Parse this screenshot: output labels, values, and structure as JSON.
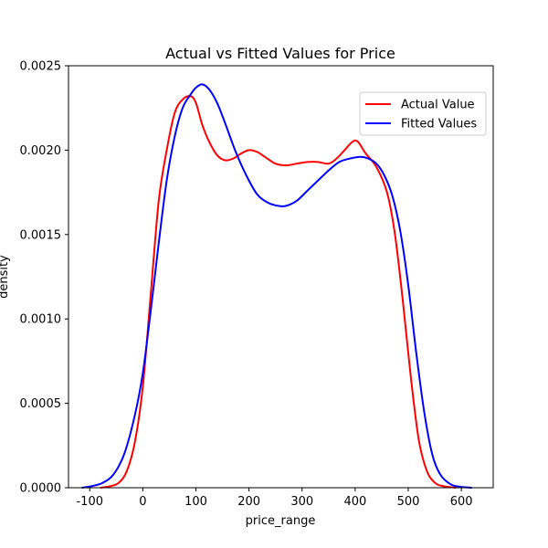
{
  "chart_data": {
    "type": "line",
    "title": "Actual vs Fitted Values for Price",
    "xlabel": "price_range",
    "ylabel": "density",
    "xlim": [
      -140,
      660
    ],
    "ylim": [
      0,
      0.0025
    ],
    "xticks": [
      -100,
      0,
      100,
      200,
      300,
      400,
      500,
      600
    ],
    "yticks": [
      0.0,
      0.0005,
      0.001,
      0.0015,
      0.002,
      0.0025
    ],
    "ytick_labels": [
      "0.0000",
      "0.0005",
      "0.0010",
      "0.0015",
      "0.0020",
      "0.0025"
    ],
    "legend_position": "upper right",
    "grid": false,
    "series": [
      {
        "name": "Actual Value",
        "color": "#ff0000",
        "x": [
          -80,
          -60,
          -45,
          -30,
          -15,
          0,
          15,
          30,
          45,
          60,
          75,
          90,
          100,
          112,
          125,
          140,
          155,
          170,
          185,
          200,
          215,
          230,
          250,
          270,
          290,
          310,
          330,
          350,
          365,
          380,
          395,
          405,
          420,
          440,
          460,
          475,
          490,
          505,
          520,
          535,
          550,
          565,
          590
        ],
        "y": [
          0.0,
          1e-05,
          3e-05,
          0.0001,
          0.00027,
          0.0006,
          0.00115,
          0.0017,
          0.002,
          0.00222,
          0.0023,
          0.00232,
          0.00228,
          0.00215,
          0.00205,
          0.00197,
          0.00194,
          0.00195,
          0.00198,
          0.002,
          0.00199,
          0.00196,
          0.00192,
          0.00191,
          0.00192,
          0.00193,
          0.00193,
          0.00192,
          0.00195,
          0.002,
          0.00205,
          0.00205,
          0.00198,
          0.0019,
          0.00175,
          0.0015,
          0.0011,
          0.00065,
          0.00028,
          0.0001,
          3e-05,
          1e-05,
          0.0
        ]
      },
      {
        "name": "Fitted Values",
        "color": "#0000ff",
        "x": [
          -115,
          -95,
          -75,
          -55,
          -35,
          -15,
          0,
          15,
          30,
          45,
          60,
          75,
          90,
          100,
          112,
          125,
          140,
          155,
          175,
          195,
          215,
          235,
          255,
          270,
          290,
          310,
          330,
          350,
          370,
          390,
          410,
          425,
          440,
          455,
          470,
          485,
          500,
          515,
          530,
          545,
          560,
          580,
          600,
          620
        ],
        "y": [
          0.0,
          1e-05,
          3e-05,
          8e-05,
          0.0002,
          0.00043,
          0.00068,
          0.00105,
          0.00145,
          0.00182,
          0.00208,
          0.00225,
          0.00233,
          0.00237,
          0.00239,
          0.00236,
          0.00228,
          0.00216,
          0.00199,
          0.00185,
          0.00174,
          0.00169,
          0.00167,
          0.00167,
          0.0017,
          0.00176,
          0.00182,
          0.00188,
          0.00193,
          0.00195,
          0.00196,
          0.00195,
          0.00192,
          0.00185,
          0.00173,
          0.00152,
          0.0012,
          0.0008,
          0.00045,
          0.0002,
          8e-05,
          2e-05,
          5e-06,
          0.0
        ]
      }
    ]
  }
}
